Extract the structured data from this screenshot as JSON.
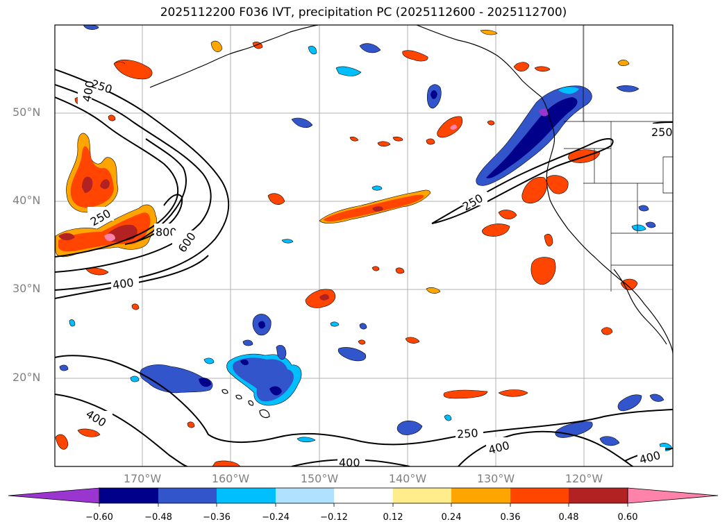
{
  "title": "2025112200 F036 IVT, precipitation PC (2025112600 - 2025112700)",
  "lat_labels": [
    "50°N",
    "40°N",
    "30°N",
    "20°N"
  ],
  "lon_labels": [
    "170°W",
    "160°W",
    "150°W",
    "140°W",
    "130°W",
    "120°W"
  ],
  "contour_labels": [
    "250",
    "400",
    "250",
    "800",
    "600",
    "400",
    "250",
    "250",
    "400",
    "250",
    "400",
    "400",
    "400"
  ],
  "colorbar": {
    "ticks": [
      "−0.60",
      "−0.48",
      "−0.36",
      "−0.24",
      "−0.12",
      "0.12",
      "0.24",
      "0.36",
      "0.48",
      "0.60"
    ],
    "colors": [
      "#9a35d0",
      "#00008b",
      "#3355cc",
      "#00bfff",
      "#b0e2ff",
      "#ffffff",
      "#ffec8b",
      "#ffa500",
      "#ff4500",
      "#b22222",
      "#ff82ab"
    ]
  },
  "colors": {
    "neg_deep": "#00008b",
    "neg_mid": "#3355cc",
    "neg_light": "#00bfff",
    "neg_pale": "#b0e2ff",
    "pos_pale": "#ffec8b",
    "pos_mid": "#ffa500",
    "pos_strong": "#ff4500",
    "pos_deep": "#b22222",
    "pos_max": "#ff82ab",
    "purple": "#9a35d0"
  }
}
